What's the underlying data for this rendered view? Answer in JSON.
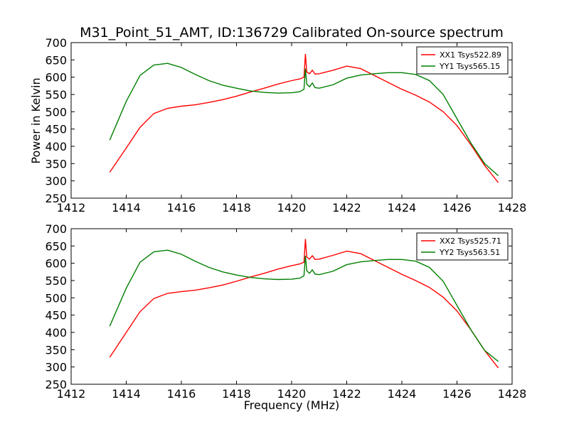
{
  "figure": {
    "title": "M31_Point_51_AMT, ID:136729 Calibrated On-source spectrum",
    "xlabel": "Frequency (MHz)",
    "ylabel": "Power in Kelvin"
  },
  "chart_data": [
    {
      "type": "line",
      "title": "M31_Point_51_AMT, ID:136729 Calibrated On-source spectrum",
      "xlabel": "",
      "ylabel": "Power in Kelvin",
      "xlim": [
        1412,
        1428
      ],
      "ylim": [
        250,
        700
      ],
      "xticks": [
        "1412",
        "1414",
        "1416",
        "1418",
        "1420",
        "1422",
        "1424",
        "1426",
        "1428"
      ],
      "yticks": [
        "250",
        "300",
        "350",
        "400",
        "450",
        "500",
        "550",
        "600",
        "650",
        "700"
      ],
      "grid": false,
      "legend_position": "top-right",
      "series": [
        {
          "name": "XX1 Tsys522.89",
          "color": "#ff0000",
          "x": [
            1413.4,
            1414.0,
            1414.5,
            1415.0,
            1415.5,
            1416.0,
            1416.5,
            1417.0,
            1417.5,
            1418.0,
            1418.5,
            1419.0,
            1419.5,
            1420.0,
            1420.3,
            1420.45,
            1420.5,
            1420.55,
            1420.65,
            1420.75,
            1420.85,
            1421.0,
            1421.5,
            1422.0,
            1422.5,
            1423.0,
            1423.5,
            1424.0,
            1424.5,
            1425.0,
            1425.5,
            1426.0,
            1426.5,
            1427.0,
            1427.5
          ],
          "y": [
            325,
            395,
            455,
            495,
            510,
            516,
            520,
            527,
            535,
            545,
            557,
            568,
            580,
            590,
            595,
            600,
            667,
            615,
            610,
            620,
            609,
            610,
            620,
            632,
            625,
            605,
            585,
            565,
            548,
            528,
            500,
            460,
            405,
            345,
            295
          ]
        },
        {
          "name": "YY1 Tsys565.15",
          "color": "#008000",
          "x": [
            1413.4,
            1414.0,
            1414.5,
            1415.0,
            1415.5,
            1416.0,
            1416.5,
            1417.0,
            1417.5,
            1418.0,
            1418.5,
            1419.0,
            1419.5,
            1420.0,
            1420.3,
            1420.45,
            1420.5,
            1420.55,
            1420.65,
            1420.75,
            1420.85,
            1421.0,
            1421.5,
            1422.0,
            1422.5,
            1423.0,
            1423.5,
            1424.0,
            1424.5,
            1425.0,
            1425.5,
            1426.0,
            1426.5,
            1427.0,
            1427.5
          ],
          "y": [
            418,
            530,
            605,
            635,
            640,
            628,
            608,
            590,
            577,
            568,
            560,
            556,
            554,
            555,
            558,
            565,
            625,
            580,
            572,
            583,
            570,
            568,
            578,
            597,
            606,
            610,
            613,
            613,
            608,
            590,
            550,
            480,
            410,
            350,
            315
          ]
        }
      ]
    },
    {
      "type": "line",
      "title": "",
      "xlabel": "Frequency (MHz)",
      "ylabel": "",
      "xlim": [
        1412,
        1428
      ],
      "ylim": [
        250,
        700
      ],
      "xticks": [
        "1412",
        "1414",
        "1416",
        "1418",
        "1420",
        "1422",
        "1424",
        "1426",
        "1428"
      ],
      "yticks": [
        "250",
        "300",
        "350",
        "400",
        "450",
        "500",
        "550",
        "600",
        "650",
        "700"
      ],
      "grid": false,
      "legend_position": "top-right",
      "series": [
        {
          "name": "XX2 Tsys525.71",
          "color": "#ff0000",
          "x": [
            1413.4,
            1414.0,
            1414.5,
            1415.0,
            1415.5,
            1416.0,
            1416.5,
            1417.0,
            1417.5,
            1418.0,
            1418.5,
            1419.0,
            1419.5,
            1420.0,
            1420.3,
            1420.45,
            1420.5,
            1420.55,
            1420.65,
            1420.75,
            1420.85,
            1421.0,
            1421.5,
            1422.0,
            1422.5,
            1423.0,
            1423.5,
            1424.0,
            1424.5,
            1425.0,
            1425.5,
            1426.0,
            1426.5,
            1427.0,
            1427.5
          ],
          "y": [
            328,
            400,
            460,
            498,
            513,
            518,
            522,
            529,
            537,
            548,
            560,
            571,
            583,
            593,
            598,
            603,
            670,
            618,
            612,
            622,
            611,
            612,
            623,
            635,
            628,
            608,
            588,
            568,
            550,
            530,
            502,
            462,
            408,
            348,
            297
          ]
        },
        {
          "name": "YY2 Tsys563.51",
          "color": "#008000",
          "x": [
            1413.4,
            1414.0,
            1414.5,
            1415.0,
            1415.5,
            1416.0,
            1416.5,
            1417.0,
            1417.5,
            1418.0,
            1418.5,
            1419.0,
            1419.5,
            1420.0,
            1420.3,
            1420.45,
            1420.5,
            1420.55,
            1420.65,
            1420.75,
            1420.85,
            1421.0,
            1421.5,
            1422.0,
            1422.5,
            1423.0,
            1423.5,
            1424.0,
            1424.5,
            1425.0,
            1425.5,
            1426.0,
            1426.5,
            1427.0,
            1427.5
          ],
          "y": [
            418,
            528,
            603,
            633,
            638,
            626,
            606,
            588,
            575,
            566,
            559,
            555,
            553,
            554,
            557,
            564,
            622,
            578,
            571,
            581,
            569,
            567,
            577,
            596,
            604,
            608,
            611,
            611,
            606,
            588,
            548,
            478,
            408,
            348,
            316
          ]
        }
      ]
    }
  ]
}
